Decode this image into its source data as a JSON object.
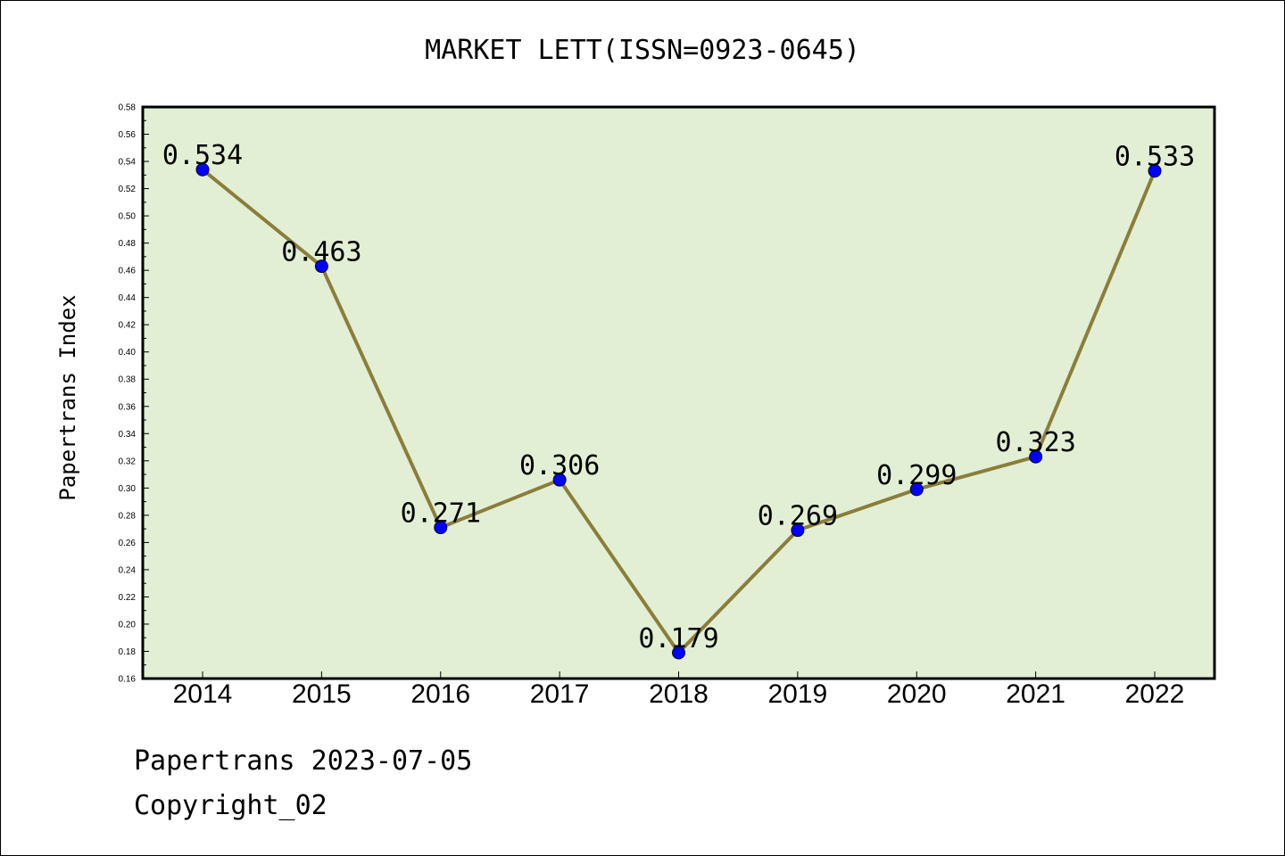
{
  "chart_data": {
    "type": "line",
    "title": "MARKET LETT(ISSN=0923-0645)",
    "xlabel": "",
    "ylabel": "Papertrans Index",
    "categories": [
      "2014",
      "2015",
      "2016",
      "2017",
      "2018",
      "2019",
      "2020",
      "2021",
      "2022"
    ],
    "values": [
      0.534,
      0.463,
      0.271,
      0.306,
      0.179,
      0.269,
      0.299,
      0.323,
      0.533
    ],
    "data_labels": [
      "0.534",
      "0.463",
      "0.271",
      "0.306",
      "0.179",
      "0.269",
      "0.299",
      "0.323",
      "0.533"
    ],
    "ylim": [
      0.16,
      0.58
    ],
    "yticks": [
      "0.16",
      "0.18",
      "0.20",
      "0.22",
      "0.24",
      "0.26",
      "0.28",
      "0.30",
      "0.32",
      "0.34",
      "0.36",
      "0.38",
      "0.40",
      "0.42",
      "0.44",
      "0.46",
      "0.48",
      "0.50",
      "0.52",
      "0.54",
      "0.56",
      "0.58"
    ],
    "grid": false,
    "colors": {
      "plot_background": "#e2efd5",
      "line": "#8b7d3a",
      "marker": "#0000ff"
    }
  },
  "footer": {
    "line1": "Papertrans 2023-07-05",
    "line2": "Copyright_02"
  }
}
